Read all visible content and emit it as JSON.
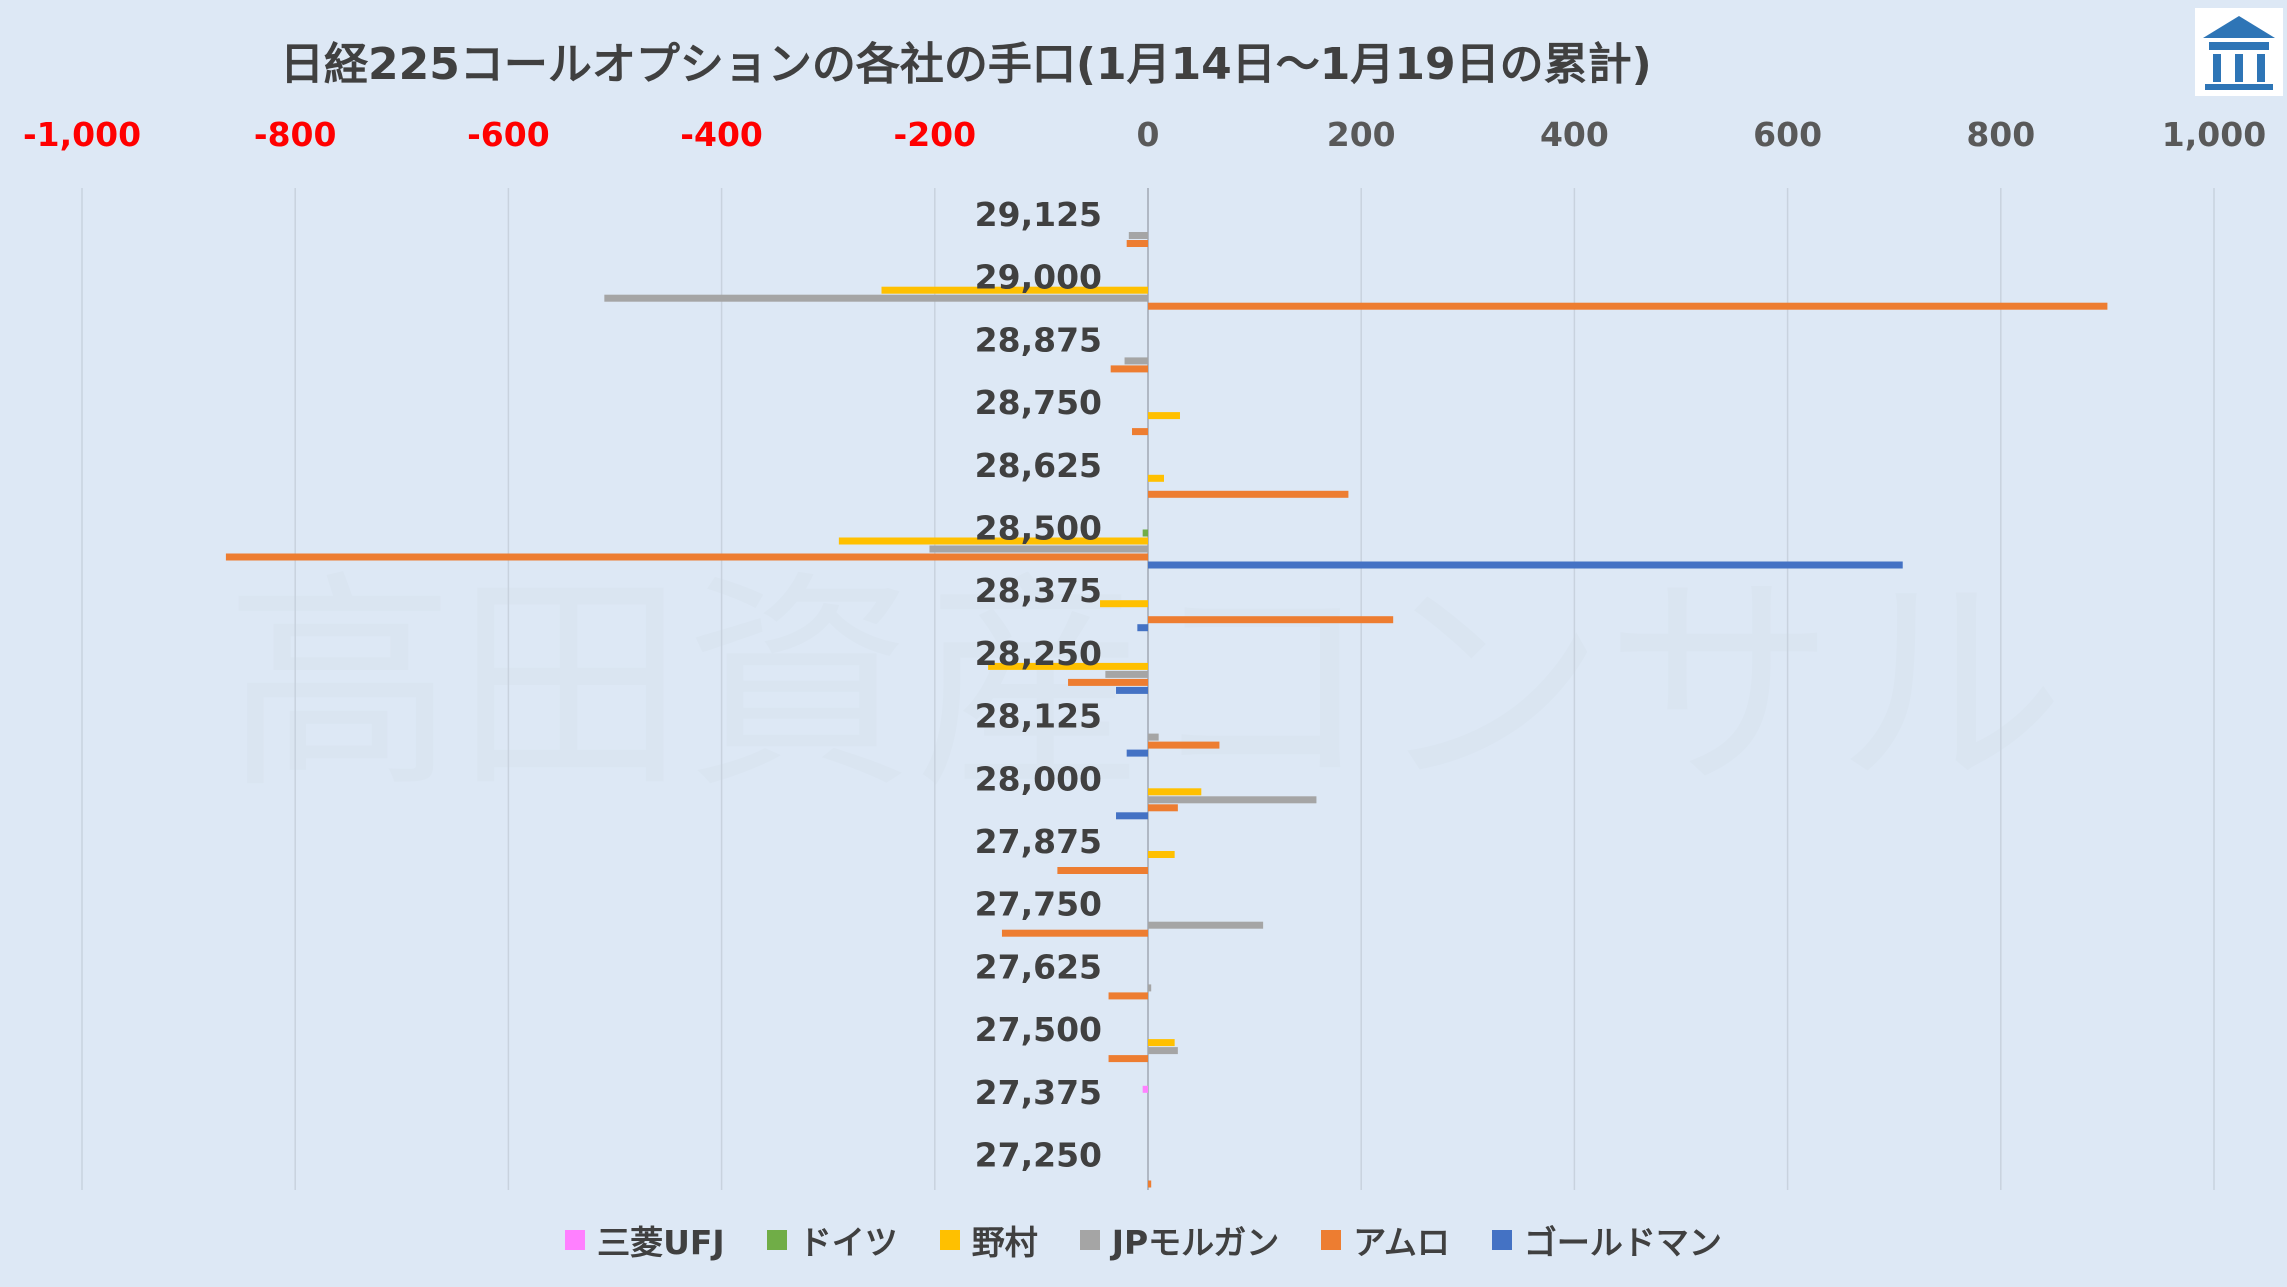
{
  "chart_data": {
    "type": "bar",
    "orientation": "horizontal",
    "title": "日経225コールオプションの各社の手口(1月14日～1月19日の累計)",
    "xlim": [
      -1000,
      1000
    ],
    "x_ticks": [
      -1000,
      -800,
      -600,
      -400,
      -200,
      0,
      200,
      400,
      600,
      800,
      1000
    ],
    "x_tick_labels": [
      "-1,000",
      "-800",
      "-600",
      "-400",
      "-200",
      "0",
      "200",
      "400",
      "600",
      "800",
      "1,000"
    ],
    "negative_tick_color": "#ff0000",
    "positive_tick_color": "#595959",
    "grid": true,
    "legend_position": "bottom",
    "watermark": "高田資産コンサル",
    "categories": [
      "29,125",
      "29,000",
      "28,875",
      "28,750",
      "28,625",
      "28,500",
      "28,375",
      "28,250",
      "28,125",
      "28,000",
      "27,875",
      "27,750",
      "27,625",
      "27,500",
      "27,375",
      "27,250"
    ],
    "series": [
      {
        "name": "三菱UFJ",
        "color": "#ff80ff",
        "values": [
          0,
          0,
          0,
          0,
          0,
          0,
          0,
          0,
          0,
          0,
          0,
          0,
          0,
          0,
          -5,
          0
        ]
      },
      {
        "name": "ドイツ",
        "color": "#70ad47",
        "values": [
          0,
          0,
          0,
          0,
          0,
          -5,
          0,
          0,
          0,
          0,
          0,
          0,
          0,
          0,
          0,
          0
        ]
      },
      {
        "name": "野村",
        "color": "#ffc000",
        "values": [
          0,
          -250,
          0,
          30,
          15,
          -290,
          -45,
          -150,
          0,
          50,
          25,
          0,
          0,
          25,
          0,
          0
        ]
      },
      {
        "name": "JPモルガン",
        "color": "#a5a5a5",
        "values": [
          -18,
          -510,
          -22,
          0,
          0,
          -205,
          0,
          -40,
          10,
          158,
          0,
          108,
          3,
          28,
          0,
          0
        ]
      },
      {
        "name": "アムロ",
        "color": "#ed7d31",
        "values": [
          -20,
          900,
          -35,
          -15,
          188,
          -865,
          230,
          -75,
          67,
          28,
          -85,
          -137,
          -37,
          -37,
          0,
          3
        ]
      },
      {
        "name": "ゴールドマン",
        "color": "#4472c4",
        "values": [
          0,
          0,
          0,
          0,
          0,
          708,
          -10,
          -30,
          -20,
          -30,
          0,
          0,
          0,
          0,
          0,
          0
        ]
      }
    ]
  },
  "logo": {
    "name": "company-logo"
  }
}
